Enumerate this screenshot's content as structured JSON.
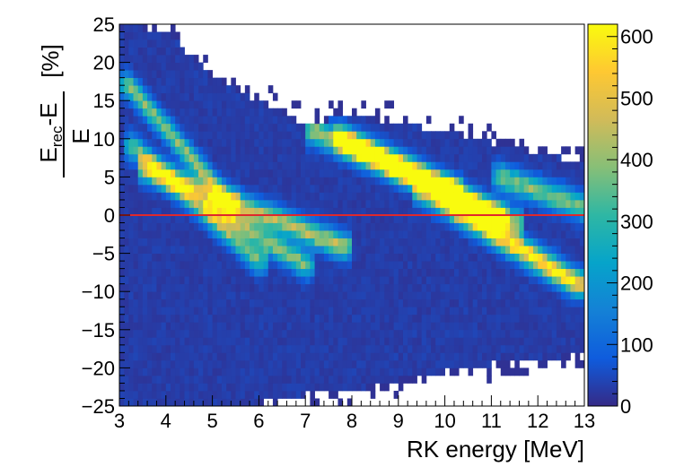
{
  "chart_data": {
    "type": "heatmap",
    "title": "",
    "xlabel": "RK energy [MeV]",
    "ylabel": {
      "main": "E",
      "sub": "rec",
      "rest": "-E",
      "denominator": "E",
      "unit": "[%]"
    },
    "xlim": [
      3,
      13
    ],
    "ylim": [
      -25,
      25
    ],
    "x_ticks": [
      3,
      4,
      5,
      6,
      7,
      8,
      9,
      10,
      11,
      12,
      13
    ],
    "y_ticks": [
      -25,
      -20,
      -15,
      -10,
      -5,
      0,
      5,
      10,
      15,
      20,
      25
    ],
    "x_tick_labels": [
      "3",
      "4",
      "5",
      "6",
      "7",
      "8",
      "9",
      "10",
      "11",
      "12",
      "13"
    ],
    "y_tick_labels": [
      "−25",
      "−20",
      "−15",
      "−10",
      "−5",
      "0",
      "5",
      "10",
      "15",
      "20",
      "25"
    ],
    "colorbar": {
      "range": [
        0,
        620
      ],
      "ticks": [
        0,
        100,
        200,
        300,
        400,
        500,
        600
      ],
      "tick_labels": [
        "0",
        "100",
        "200",
        "300",
        "400",
        "500",
        "600"
      ],
      "palette": [
        "#352a87",
        "#0f5cdd",
        "#1481d6",
        "#06a4ca",
        "#2eb7a4",
        "#87bf77",
        "#d1bb59",
        "#fec832",
        "#f9fb0e"
      ]
    },
    "reference_line": {
      "y": 0,
      "color": "#e0282c"
    },
    "bins": {
      "x_bins": 100,
      "y_bins": 50
    },
    "ridges": [
      {
        "x": [
          3.2,
          5.4
        ],
        "y": [
          17,
          1.5
        ],
        "peak": 360
      },
      {
        "x": [
          3.3,
          6.0
        ],
        "y": [
          9,
          -6
        ],
        "peak": 330
      },
      {
        "x": [
          3.6,
          7.8
        ],
        "y": [
          6,
          -4
        ],
        "peak": 400
      },
      {
        "x": [
          5.0,
          7.0
        ],
        "y": [
          1,
          -6.5
        ],
        "peak": 350
      },
      {
        "x": [
          7.2,
          11.5
        ],
        "y": [
          11,
          -1
        ],
        "peak": 400
      },
      {
        "x": [
          7.8,
          10.2
        ],
        "y": [
          10,
          3
        ],
        "peak": 600
      },
      {
        "x": [
          10.0,
          11.2
        ],
        "y": [
          3,
          -0.5
        ],
        "peak": 520
      },
      {
        "x": [
          9.5,
          12.8
        ],
        "y": [
          3,
          -9
        ],
        "peak": 300
      },
      {
        "x": [
          10.3,
          12.9
        ],
        "y": [
          1,
          -9
        ],
        "peak": 280
      },
      {
        "x": [
          11.2,
          13.0
        ],
        "y": [
          5,
          1
        ],
        "peak": 350
      }
    ],
    "coverage_boundary": {
      "x": [
        3,
        4,
        5,
        6,
        7,
        8,
        9,
        10,
        11,
        12,
        13
      ],
      "upper": [
        25,
        24,
        18,
        15,
        12,
        13,
        12,
        11,
        9.5,
        8,
        7
      ],
      "lower": [
        -25,
        -25,
        -25,
        -24.5,
        -23.5,
        -23,
        -21.5,
        -20.5,
        -19.5,
        -19,
        -18
      ]
    }
  }
}
